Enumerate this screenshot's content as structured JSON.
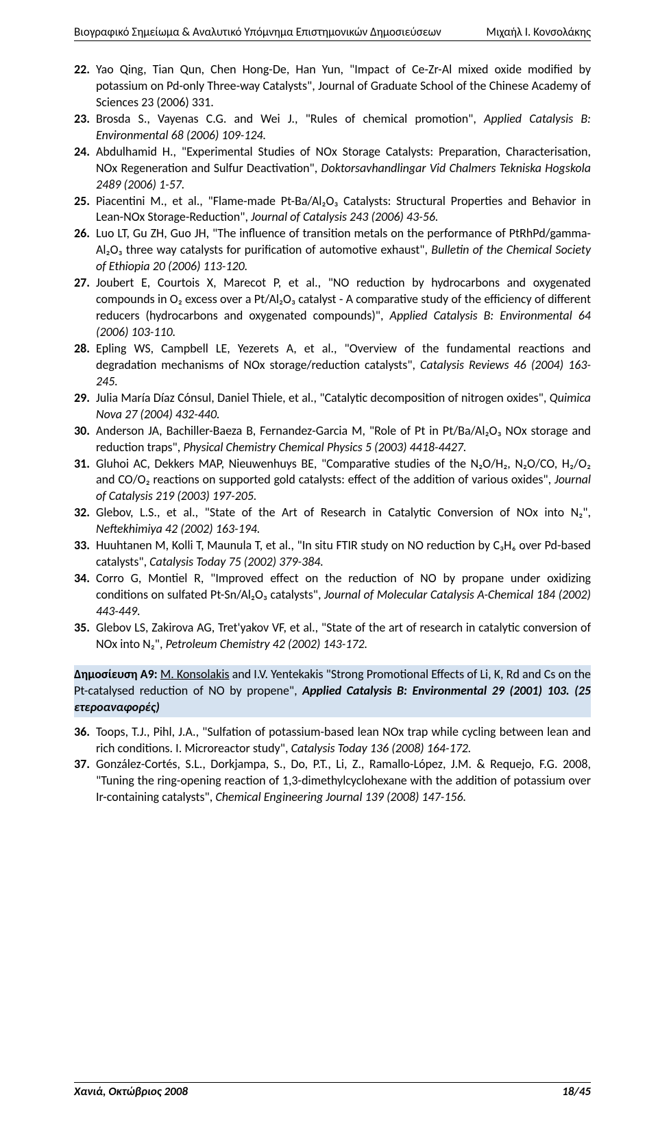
{
  "header": {
    "left": "Βιογραφικό Σημείωμα & Αναλυτικό Υπόμνημα Επιστημονικών Δημοσιεύσεων",
    "right": "Μιχαήλ Ι. Κονσολάκης"
  },
  "refsA": [
    {
      "num": "22.",
      "html": "Yao Qing, Tian Qun, Chen Hong-De, Han Yun, \"Impact of Ce-Zr-Al mixed oxide modified by potassium on Pd-only Three-way Catalysts\", Journal of Graduate School of the Chinese Academy of Sciences 23 (2006) 331."
    },
    {
      "num": "23.",
      "html": "Brosda S., Vayenas C.G. and Wei J., \"Rules of chemical promotion\", <em>Applied Catalysis B: Environmental 68 (2006) 109-124.</em>"
    },
    {
      "num": "24.",
      "html": "Abdulhamid H., \"Experimental Studies of NOx Storage Catalysts: Preparation, Characterisation, NOx Regeneration and Sulfur Deactivation\", <em>Doktorsavhandlingar Vid Chalmers Tekniska Hogskola 2489 (2006) 1-57.</em>"
    },
    {
      "num": "25.",
      "html": "Piacentini M., et al., \"Flame-made Pt-Ba/Al₂O₃ Catalysts: Structural Properties and Behavior in Lean-NOx Storage-Reduction\", <em>Journal of Catalysis 243 (2006) 43-56.</em>"
    },
    {
      "num": "26.",
      "html": "Luo LT, Gu ZH, Guo JH, \"The influence of transition metals on the performance of PtRhPd/gamma-Al₂O₃ three way catalysts for purification of automotive exhaust\", <em>Bulletin of the Chemical Society of Ethiopia 20 (2006) 113-120.</em>"
    },
    {
      "num": "27.",
      "html": "Joubert E, Courtois X, Marecot P, et al., \"NO reduction by hydrocarbons and oxygenated compounds in O₂ excess over a Pt/Al₂O₃ catalyst - A comparative study of the efficiency of different reducers (hydrocarbons and oxygenated compounds)\", <em>Applied Catalysis B: Environmental 64 (2006) 103-110.</em>"
    },
    {
      "num": "28.",
      "html": "Epling WS, Campbell LE, Yezerets A, et al., \"Overview of the fundamental reactions and degradation mechanisms of NOx storage/reduction catalysts\", <em>Catalysis&nbsp;Reviews 46 (2004) 163-245.</em>"
    },
    {
      "num": "29.",
      "html": "Julia María Díaz Cónsul, Daniel Thiele, et al., \"Catalytic decomposition of nitrogen oxides\", <em>Quimica Nova 27 (2004) 432-440.</em>"
    },
    {
      "num": "30.",
      "html": "Anderson JA, Bachiller-Baeza B, Fernandez-Garcia M, \"Role of Pt in Pt/Ba/Al₂O₃ NOx storage and reduction traps\", <em>Physical Chemistry Chemical Physics 5 (2003) 4418-4427.</em>"
    },
    {
      "num": "31.",
      "html": "Gluhoi AC, Dekkers MAP, Nieuwenhuys BE, \"Comparative studies of the N₂O/H₂, N₂O/CO, H₂/O₂ and CO/O₂ reactions on supported gold catalysts: effect of the addition of various oxides\", <em>Journal of Catalysis 219 (2003) 197-205.</em>"
    },
    {
      "num": "32.",
      "html": "Glebov, L.S., et al., \"State of the Art of Research in Catalytic Conversion of NOx into N₂\", <em>Neftekhimiya 42 (2002) 163-194.</em>"
    },
    {
      "num": "33.",
      "html": "Huuhtanen M, Kolli T, Maunula T, et al., \"In situ FTIR study on NO reduction by C₃H₆ over Pd-based catalysts\", <em>Catalysis Today 75 (2002) 379-384.</em>"
    },
    {
      "num": "34.",
      "html": "Corro G, Montiel R, \"Improved effect on the reduction of NO by propane under oxidizing conditions on sulfated Pt-Sn/Al₂O₃ catalysts\", <em>Journal of Molecular Catalysis A-Chemical 184 (2002) 443-449.</em>"
    },
    {
      "num": "35.",
      "html": "Glebov LS, Zakirova AG, Tret'yakov VF, et al., \"State of the art of research in catalytic conversion of NOx into N₂\", <em>Petroleum Chemistry 42 (2002) 143-172.</em>"
    }
  ],
  "highlight": {
    "pub_label": "Δημοσίευση Α9:",
    "authors_underlined": "M. Konsolakis",
    "authors_rest": " and I.V. Yentekakis \"Strong Promotional Effects of Li, K, Rd and Cs on the Pt-catalysed reduction of NO by propene\", ",
    "journal": "Applied Catalysis B: Environmental 29 (2001) 103",
    "refcount": ". (25 ετεροαναφορές)"
  },
  "refsB": [
    {
      "num": "36.",
      "html": "Toops, T.J., Pihl, J.A., \"Sulfation of potassium-based lean NOx trap while cycling between lean and rich conditions. I. Microreactor study\", <em>Catalysis Today 136 (2008) 164-172.</em>"
    },
    {
      "num": "37.",
      "html": "González-Cortés, S.L., Dorkjampa, S., Do, P.T., Li, Z., Ramallo-López, J.M. & Requejo, F.G. 2008, \"Tuning the ring-opening reaction of 1,3-dimethylcyclohexane with the addition of potassium over Ir-containing catalysts\", <em>Chemical Engineering Journal 139 (2008) 147-156.</em>"
    }
  ],
  "footer": {
    "left": "Χανιά, Οκτώβριος 2008",
    "right": "18/45"
  }
}
